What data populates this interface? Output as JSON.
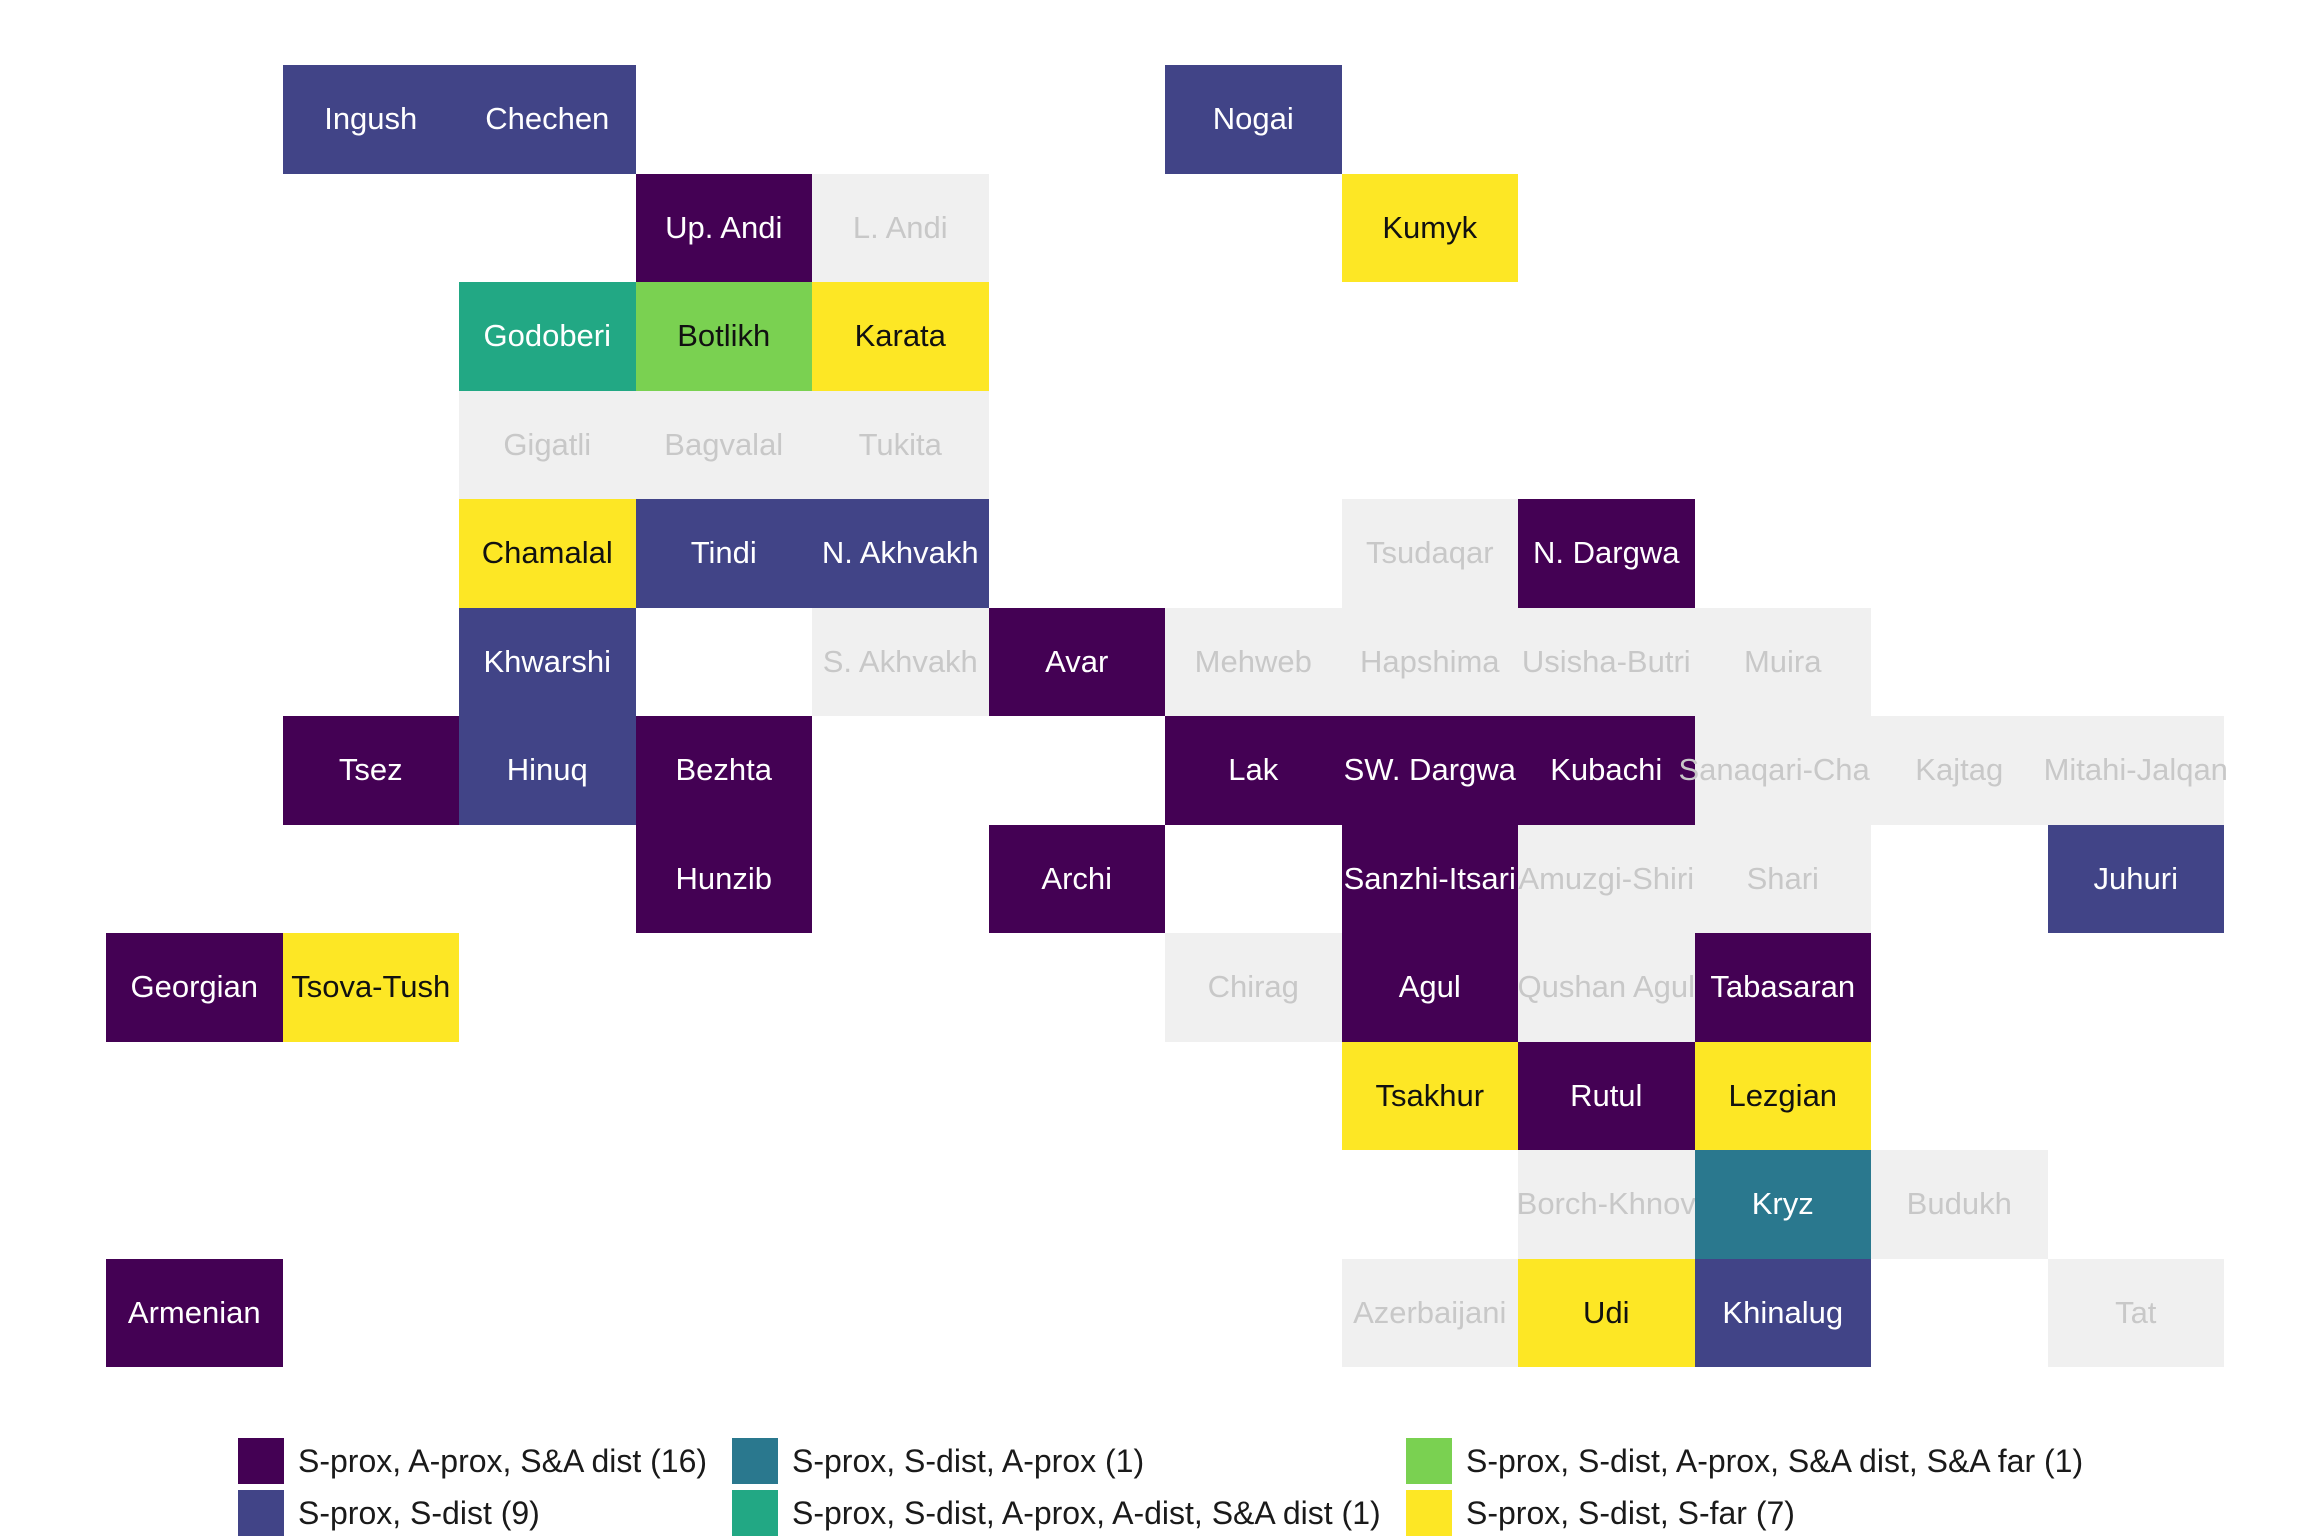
{
  "categories": [
    {
      "key": "c1",
      "label": "S-prox, A-prox, S&A dist (16)",
      "color": "#440154"
    },
    {
      "key": "c2",
      "label": "S-prox, S-dist (9)",
      "color": "#414487"
    },
    {
      "key": "c3",
      "label": "S-prox, S-dist, A-prox (1)",
      "color": "#2A788E"
    },
    {
      "key": "c4",
      "label": "S-prox, S-dist, A-prox, A-dist, S&A dist (1)",
      "color": "#22A884"
    },
    {
      "key": "c5",
      "label": "S-prox, S-dist, A-prox, S&A dist, S&A far (1)",
      "color": "#7AD151"
    },
    {
      "key": "c6",
      "label": "S-prox, S-dist, S-far (7)",
      "color": "#FDE725"
    }
  ],
  "no_data_color": "#F0F0F0",
  "no_data_text_color": "#C8C8C8",
  "cells": [
    {
      "name": "Ingush",
      "col": 1,
      "row": 0,
      "cat": "c2"
    },
    {
      "name": "Chechen",
      "col": 2,
      "row": 0,
      "cat": "c2"
    },
    {
      "name": "Nogai",
      "col": 6,
      "row": 0,
      "cat": "c2"
    },
    {
      "name": "Up. Andi",
      "col": 3,
      "row": 1,
      "cat": "c1"
    },
    {
      "name": "L. Andi",
      "col": 4,
      "row": 1,
      "cat": null
    },
    {
      "name": "Kumyk",
      "col": 7,
      "row": 1,
      "cat": "c6"
    },
    {
      "name": "Godoberi",
      "col": 2,
      "row": 2,
      "cat": "c4"
    },
    {
      "name": "Botlikh",
      "col": 3,
      "row": 2,
      "cat": "c5"
    },
    {
      "name": "Karata",
      "col": 4,
      "row": 2,
      "cat": "c6"
    },
    {
      "name": "Gigatli",
      "col": 2,
      "row": 3,
      "cat": null
    },
    {
      "name": "Bagvalal",
      "col": 3,
      "row": 3,
      "cat": null
    },
    {
      "name": "Tukita",
      "col": 4,
      "row": 3,
      "cat": null
    },
    {
      "name": "Chamalal",
      "col": 2,
      "row": 4,
      "cat": "c6"
    },
    {
      "name": "Tindi",
      "col": 3,
      "row": 4,
      "cat": "c2"
    },
    {
      "name": "N. Akhvakh",
      "col": 4,
      "row": 4,
      "cat": "c2"
    },
    {
      "name": "Tsudaqar",
      "col": 7,
      "row": 4,
      "cat": null
    },
    {
      "name": "N. Dargwa",
      "col": 8,
      "row": 4,
      "cat": "c1"
    },
    {
      "name": "Khwarshi",
      "col": 2,
      "row": 5,
      "cat": "c2"
    },
    {
      "name": "S. Akhvakh",
      "col": 4,
      "row": 5,
      "cat": null
    },
    {
      "name": "Avar",
      "col": 5,
      "row": 5,
      "cat": "c1"
    },
    {
      "name": "Mehweb",
      "col": 6,
      "row": 5,
      "cat": null
    },
    {
      "name": "Hapshima",
      "col": 7,
      "row": 5,
      "cat": null
    },
    {
      "name": "Usisha-Butri",
      "col": 8,
      "row": 5,
      "cat": null
    },
    {
      "name": "Muira",
      "col": 9,
      "row": 5,
      "cat": null
    },
    {
      "name": "Tsez",
      "col": 1,
      "row": 6,
      "cat": "c1"
    },
    {
      "name": "Hinuq",
      "col": 2,
      "row": 6,
      "cat": "c2"
    },
    {
      "name": "Bezhta",
      "col": 3,
      "row": 6,
      "cat": "c1"
    },
    {
      "name": "Lak",
      "col": 6,
      "row": 6,
      "cat": "c1"
    },
    {
      "name": "SW. Dargwa",
      "col": 7,
      "row": 6,
      "cat": "c1"
    },
    {
      "name": "Kubachi",
      "col": 8,
      "row": 6,
      "cat": "c1"
    },
    {
      "name": "Sanaqari-Chah",
      "col": 9,
      "row": 6,
      "cat": null
    },
    {
      "name": "Kajtag",
      "col": 10,
      "row": 6,
      "cat": null
    },
    {
      "name": "Mitahi-Jalqan",
      "col": 11,
      "row": 6,
      "cat": null
    },
    {
      "name": "Hunzib",
      "col": 3,
      "row": 7,
      "cat": "c1"
    },
    {
      "name": "Archi",
      "col": 5,
      "row": 7,
      "cat": "c1"
    },
    {
      "name": "Sanzhi-Itsari",
      "col": 7,
      "row": 7,
      "cat": "c1"
    },
    {
      "name": "Amuzgi-Shiri",
      "col": 8,
      "row": 7,
      "cat": null
    },
    {
      "name": "Shari",
      "col": 9,
      "row": 7,
      "cat": null
    },
    {
      "name": "Juhuri",
      "col": 11,
      "row": 7,
      "cat": "c2"
    },
    {
      "name": "Georgian",
      "col": 0,
      "row": 8,
      "cat": "c1"
    },
    {
      "name": "Tsova-Tush",
      "col": 1,
      "row": 8,
      "cat": "c6"
    },
    {
      "name": "Chirag",
      "col": 6,
      "row": 8,
      "cat": null
    },
    {
      "name": "Agul",
      "col": 7,
      "row": 8,
      "cat": "c1"
    },
    {
      "name": "Qushan Agul",
      "col": 8,
      "row": 8,
      "cat": null
    },
    {
      "name": "Tabasaran",
      "col": 9,
      "row": 8,
      "cat": "c1"
    },
    {
      "name": "Tsakhur",
      "col": 7,
      "row": 9,
      "cat": "c6"
    },
    {
      "name": "Rutul",
      "col": 8,
      "row": 9,
      "cat": "c1"
    },
    {
      "name": "Lezgian",
      "col": 9,
      "row": 9,
      "cat": "c6"
    },
    {
      "name": "Borch-Khnov",
      "col": 8,
      "row": 10,
      "cat": null
    },
    {
      "name": "Kryz",
      "col": 9,
      "row": 10,
      "cat": "c3"
    },
    {
      "name": "Budukh",
      "col": 10,
      "row": 10,
      "cat": null
    },
    {
      "name": "Armenian",
      "col": 0,
      "row": 11,
      "cat": "c1"
    },
    {
      "name": "Azerbaijani",
      "col": 7,
      "row": 11,
      "cat": null
    },
    {
      "name": "Udi",
      "col": 8,
      "row": 11,
      "cat": "c6"
    },
    {
      "name": "Khinalug",
      "col": 9,
      "row": 11,
      "cat": "c2"
    },
    {
      "name": "Tat",
      "col": 11,
      "row": 11,
      "cat": null
    }
  ]
}
